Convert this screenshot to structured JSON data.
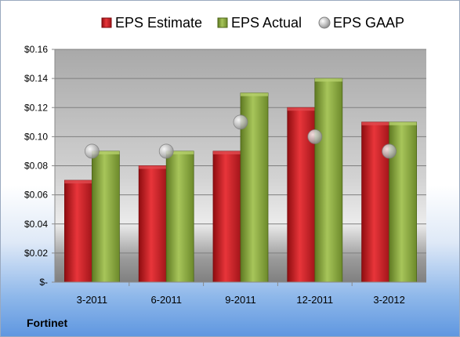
{
  "chart_data": {
    "type": "bar",
    "categories": [
      "3-2011",
      "6-2011",
      "9-2011",
      "12-2011",
      "3-2012"
    ],
    "series": [
      {
        "name": "EPS Estimate",
        "kind": "bar",
        "color": "#cc1f24",
        "values": [
          0.07,
          0.08,
          0.09,
          0.12,
          0.11
        ]
      },
      {
        "name": "EPS Actual",
        "kind": "bar",
        "color": "#8fae3f",
        "values": [
          0.09,
          0.09,
          0.13,
          0.14,
          0.11
        ]
      },
      {
        "name": "EPS GAAP",
        "kind": "marker",
        "color": "#c8c8c8",
        "values": [
          0.09,
          0.09,
          0.11,
          0.1,
          0.09
        ]
      }
    ],
    "ylim": [
      0,
      0.16
    ],
    "yticks": [
      0,
      0.02,
      0.04,
      0.06,
      0.08,
      0.1,
      0.12,
      0.14,
      0.16
    ],
    "ytick_labels": [
      "$-",
      "$0.02",
      "$0.04",
      "$0.06",
      "$0.08",
      "$0.10",
      "$0.12",
      "$0.14",
      "$0.16"
    ],
    "grid": true,
    "legend_position": "top"
  },
  "footer": {
    "label": "Fortinet"
  }
}
